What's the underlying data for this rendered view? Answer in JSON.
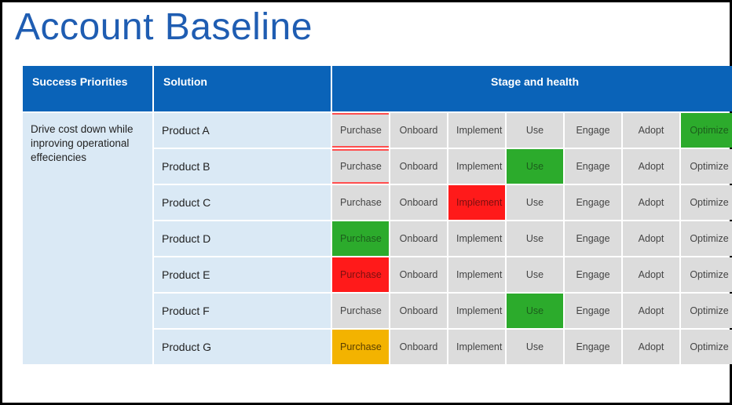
{
  "title": "Account Baseline",
  "headers": {
    "priorities": "Success Priorities",
    "solution": "Solution",
    "stage": "Stage and health"
  },
  "colors": {
    "header_bg": "#0a63b8",
    "header_fg": "#ffffff",
    "priority_bg": "#dae9f5",
    "solution_bg": "#dae9f5",
    "stage_default_bg": "#dcdcdc",
    "green": "#2cab2c",
    "red": "#ff1a1a",
    "amber": "#f3b300",
    "title_color": "#1f5db2"
  },
  "stages": [
    "Purchase",
    "Onboard",
    "Implement",
    "Use",
    "Engage",
    "Adopt",
    "Optimize"
  ],
  "priority_text": "Drive cost down while inproving operational effeciencies",
  "rows": [
    {
      "solution": "Product A",
      "highlights": {
        "Optimize": "green"
      },
      "purchase_redbox": true
    },
    {
      "solution": "Product B",
      "highlights": {
        "Use": "green"
      },
      "purchase_redbox": true
    },
    {
      "solution": "Product C",
      "highlights": {
        "Implement": "red"
      }
    },
    {
      "solution": "Product D",
      "highlights": {
        "Purchase": "green"
      }
    },
    {
      "solution": "Product E",
      "highlights": {
        "Purchase": "red"
      }
    },
    {
      "solution": "Product F",
      "highlights": {
        "Use": "green"
      }
    },
    {
      "solution": "Product G",
      "highlights": {
        "Purchase": "amber"
      }
    }
  ]
}
